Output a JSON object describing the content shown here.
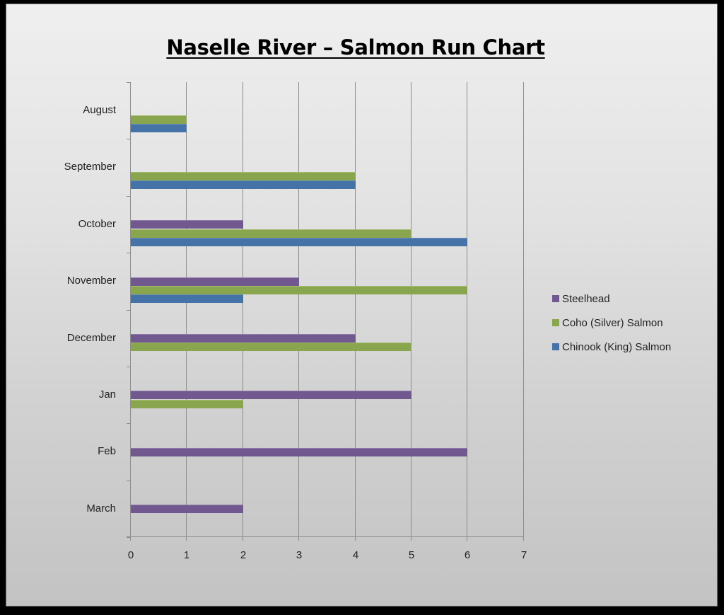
{
  "chart_data": {
    "type": "bar",
    "orientation": "horizontal",
    "title": "Naselle River – Salmon Run Chart",
    "xlabel": "",
    "ylabel": "",
    "xlim": [
      0,
      7
    ],
    "x_ticks": [
      "0",
      "1",
      "2",
      "3",
      "4",
      "5",
      "6",
      "7"
    ],
    "grid": true,
    "legend_position": "right",
    "categories": [
      "August",
      "September",
      "October",
      "November",
      "December",
      "Jan",
      "Feb",
      "March"
    ],
    "series": [
      {
        "name": "Steelhead",
        "color": "#71588f",
        "values": [
          0,
          0,
          2,
          3,
          4,
          5,
          6,
          2
        ]
      },
      {
        "name": "Coho (Silver) Salmon",
        "color": "#89a54e",
        "values": [
          1,
          4,
          5,
          6,
          5,
          2,
          0,
          0
        ]
      },
      {
        "name": "Chinook (King) Salmon",
        "color": "#4572a7",
        "values": [
          1,
          4,
          6,
          2,
          0,
          0,
          0,
          0
        ]
      }
    ]
  },
  "legend": {
    "items": [
      {
        "label": "Steelhead",
        "color": "#71588f"
      },
      {
        "label": "Coho (Silver) Salmon",
        "color": "#89a54e"
      },
      {
        "label": "Chinook (King) Salmon",
        "color": "#4572a7"
      }
    ]
  }
}
